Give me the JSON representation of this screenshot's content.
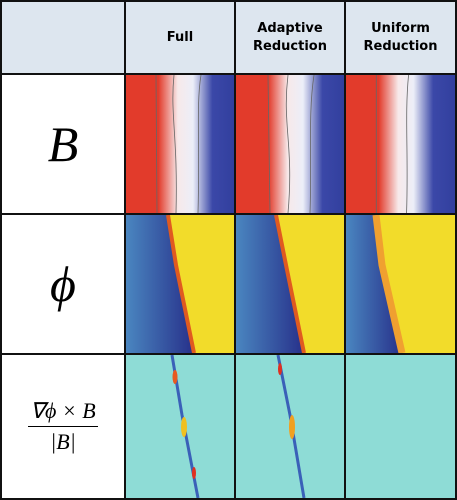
{
  "header": {
    "columns": [
      "Full",
      "Adaptive Reduction",
      "Uniform Reduction"
    ]
  },
  "rows": [
    {
      "label": "B"
    },
    {
      "label": "ϕ"
    },
    {
      "numerator": "∇ϕ × B",
      "denominator": "|B|"
    }
  ]
}
